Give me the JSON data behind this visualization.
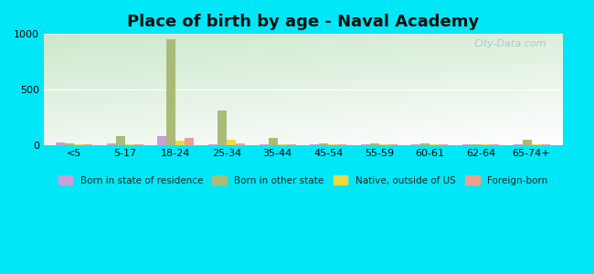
{
  "title": "Place of birth by age - Naval Academy",
  "categories": [
    "<5",
    "5-17",
    "18-24",
    "25-34",
    "35-44",
    "45-54",
    "55-59",
    "60-61",
    "62-64",
    "65-74+"
  ],
  "series": {
    "Born in state of residence": {
      "color": "#c8a0d8",
      "values": [
        18,
        12,
        75,
        8,
        5,
        5,
        7,
        6,
        6,
        5
      ]
    },
    "Born in other state": {
      "color": "#aabb77",
      "values": [
        12,
        75,
        950,
        310,
        60,
        12,
        15,
        10,
        8,
        50
      ]
    },
    "Native, outside of US": {
      "color": "#f0d840",
      "values": [
        5,
        5,
        40,
        50,
        8,
        5,
        5,
        5,
        5,
        7
      ]
    },
    "Foreign-born": {
      "color": "#f0a090",
      "values": [
        6,
        5,
        65,
        15,
        6,
        5,
        5,
        5,
        5,
        8
      ]
    }
  },
  "ylim": [
    0,
    1000
  ],
  "yticks": [
    0,
    500,
    1000
  ],
  "background_color": "#00e8f8",
  "bar_width": 0.18,
  "watermark": "City-Data.com"
}
